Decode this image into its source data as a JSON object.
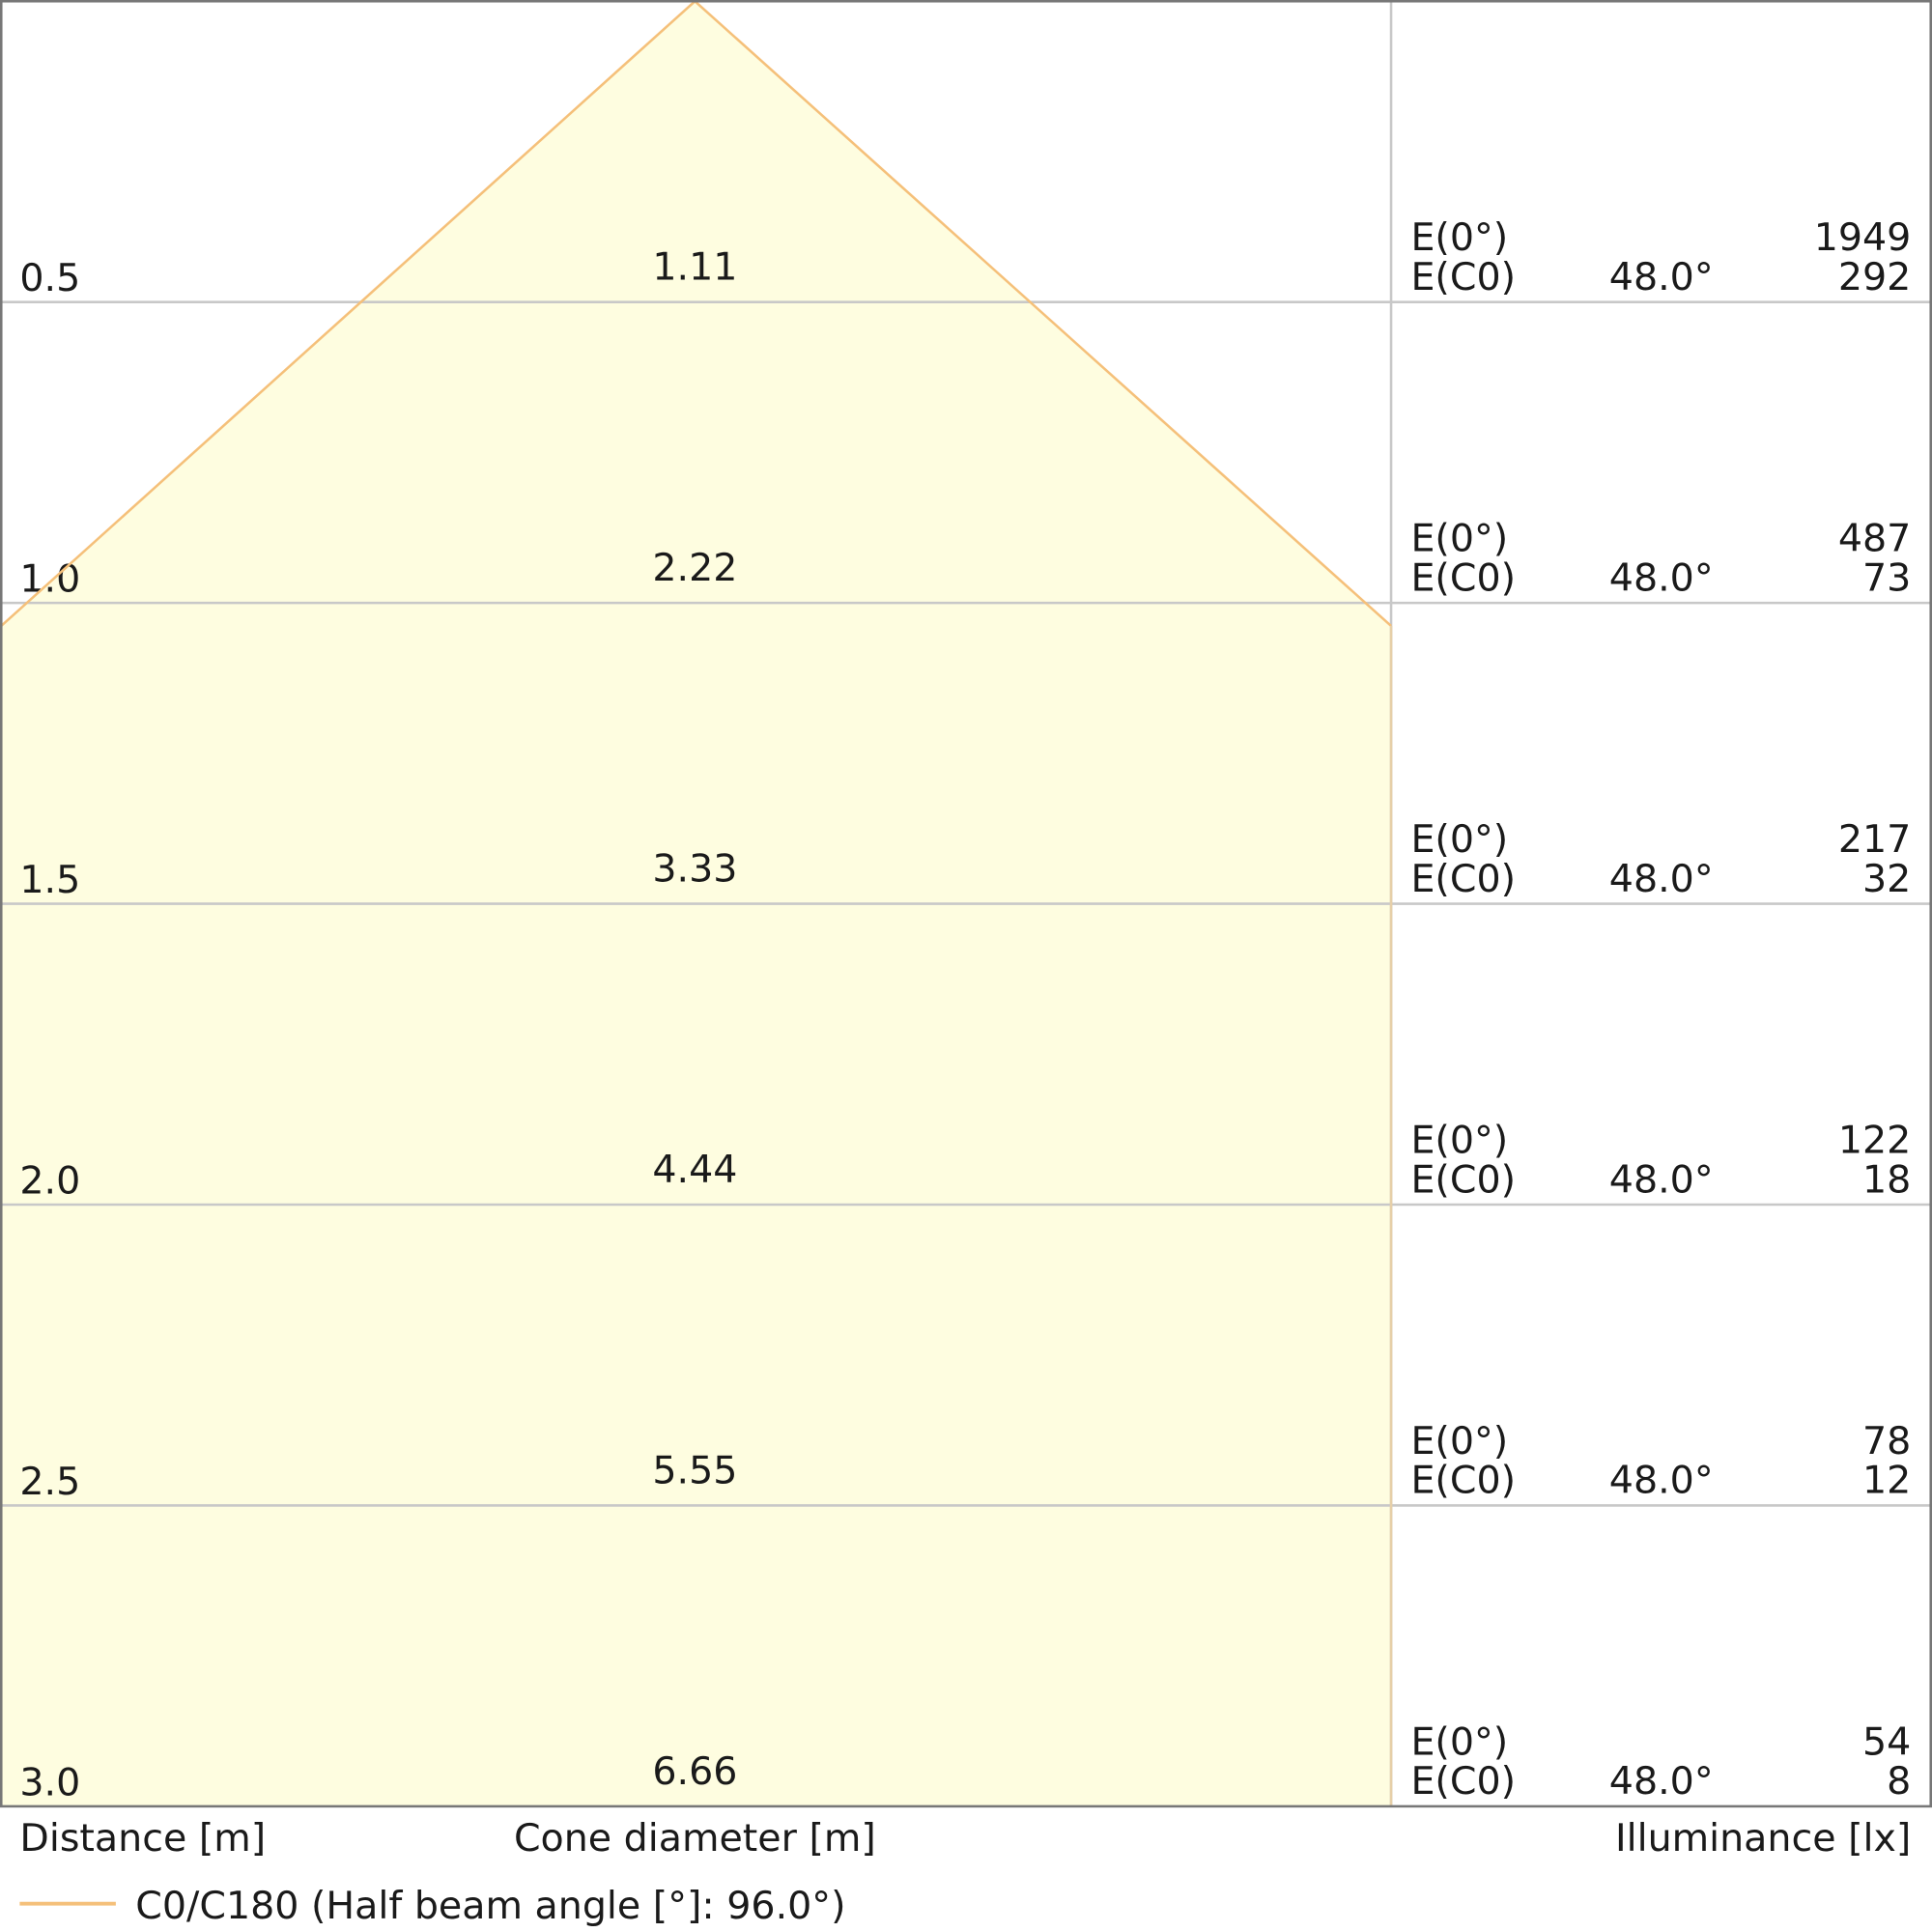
{
  "rows": [
    {
      "distance": "0.5",
      "diameter": "1.11",
      "e0_label": "E(0°)",
      "e0": "1949",
      "ec0_label": "E(C0)",
      "angle": "48.0°",
      "ec0": "292"
    },
    {
      "distance": "1.0",
      "diameter": "2.22",
      "e0_label": "E(0°)",
      "e0": "487",
      "ec0_label": "E(C0)",
      "angle": "48.0°",
      "ec0": "73"
    },
    {
      "distance": "1.5",
      "diameter": "3.33",
      "e0_label": "E(0°)",
      "e0": "217",
      "ec0_label": "E(C0)",
      "angle": "48.0°",
      "ec0": "32"
    },
    {
      "distance": "2.0",
      "diameter": "4.44",
      "e0_label": "E(0°)",
      "e0": "122",
      "ec0_label": "E(C0)",
      "angle": "48.0°",
      "ec0": "18"
    },
    {
      "distance": "2.5",
      "diameter": "5.55",
      "e0_label": "E(0°)",
      "e0": "78",
      "ec0_label": "E(C0)",
      "angle": "48.0°",
      "ec0": "12"
    },
    {
      "distance": "3.0",
      "diameter": "6.66",
      "e0_label": "E(0°)",
      "e0": "54",
      "ec0_label": "E(C0)",
      "angle": "48.0°",
      "ec0": "8"
    }
  ],
  "footer": {
    "distance_label": "Distance [m]",
    "diameter_label": "Cone diameter [m]",
    "illuminance_label": "Illuminance [lx]"
  },
  "legend": {
    "label": "C0/C180 (Half beam angle [°]: 96.0°)"
  }
}
